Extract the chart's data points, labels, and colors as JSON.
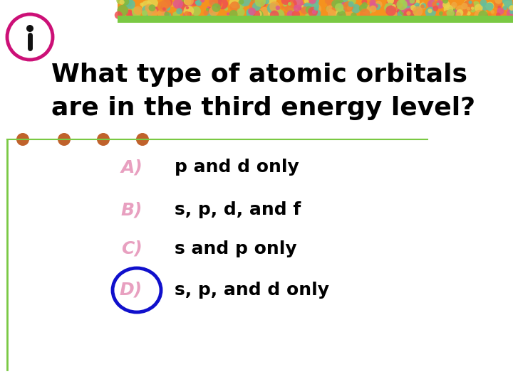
{
  "title_line1": "What type of atomic orbitals",
  "title_line2": "are in the third energy level?",
  "options": [
    {
      "label": "A)",
      "text": "p and d only"
    },
    {
      "label": "B)",
      "text": "s, p, d, and f"
    },
    {
      "label": "C)",
      "text": "s and p only"
    },
    {
      "label": "D)",
      "text": "s, p, and d only"
    }
  ],
  "label_color": "#E8A0C0",
  "text_color": "#000000",
  "title_color": "#000000",
  "bg_color": "#FFFFFF",
  "header_orange": "#F5921E",
  "header_green": "#7AC943",
  "dot_color": "#C0622B",
  "circle_color": "#1010CC",
  "icon_circle_color": "#CC1077",
  "left_border_color": "#7AC943"
}
